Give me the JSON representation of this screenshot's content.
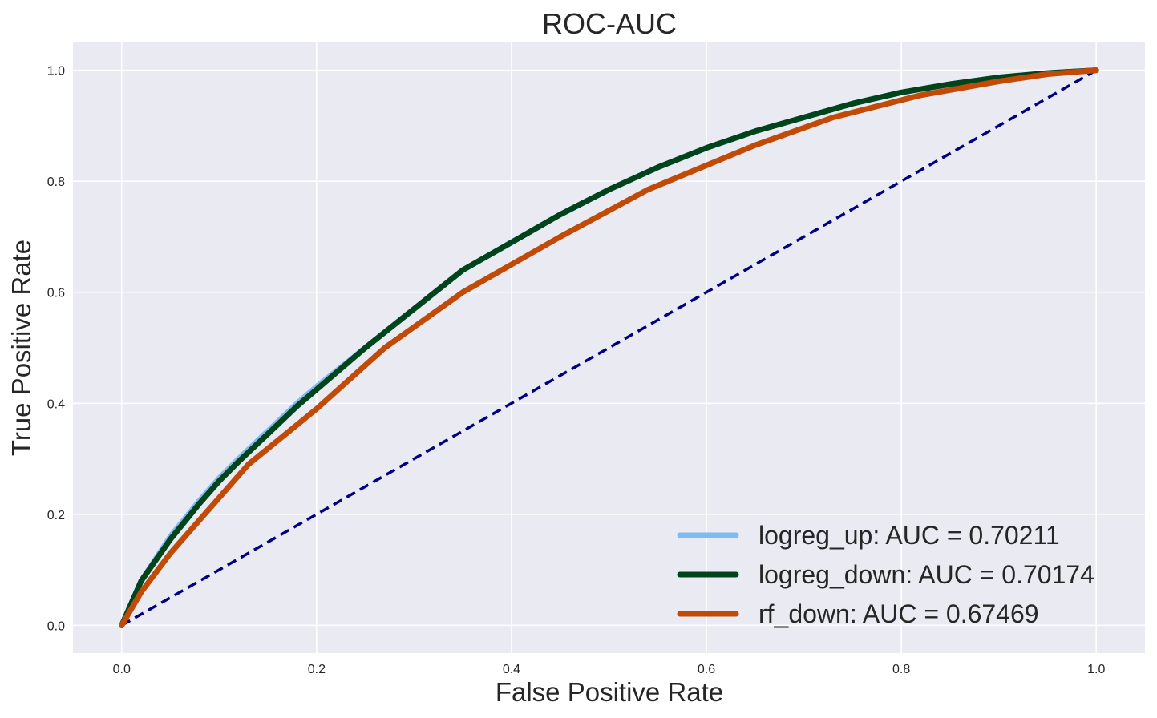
{
  "chart_data": {
    "type": "line",
    "title": "ROC-AUC",
    "xlabel": "False Positive Rate",
    "ylabel": "True Positive Rate",
    "xlim": [
      -0.05,
      1.05
    ],
    "ylim": [
      -0.05,
      1.05
    ],
    "xticks": [
      0.0,
      0.2,
      0.4,
      0.6,
      0.8,
      1.0
    ],
    "yticks": [
      0.0,
      0.2,
      0.4,
      0.6,
      0.8,
      1.0
    ],
    "x_tick_labels": [
      "0.0",
      "0.2",
      "0.4",
      "0.6",
      "0.8",
      "1.0"
    ],
    "y_tick_labels": [
      "0.0",
      "0.2",
      "0.4",
      "0.6",
      "0.8",
      "1.0"
    ],
    "grid": true,
    "legend_position": "lower-right",
    "background_color": "#eaeaf2",
    "series": [
      {
        "name": "logreg_up: AUC = 0.70211",
        "color": "#7fbbf2",
        "x": [
          0,
          0.02,
          0.05,
          0.08,
          0.1,
          0.12,
          0.15,
          0.18,
          0.2,
          0.25,
          0.3,
          0.35,
          0.4,
          0.45,
          0.5,
          0.55,
          0.6,
          0.65,
          0.7,
          0.75,
          0.8,
          0.85,
          0.9,
          0.95,
          1.0
        ],
        "y": [
          0,
          0.08,
          0.16,
          0.225,
          0.265,
          0.3,
          0.35,
          0.4,
          0.43,
          0.5,
          0.57,
          0.64,
          0.69,
          0.74,
          0.785,
          0.825,
          0.86,
          0.89,
          0.915,
          0.94,
          0.96,
          0.975,
          0.987,
          0.995,
          1.0
        ]
      },
      {
        "name": "logreg_down: AUC = 0.70174",
        "color": "#00441b",
        "x": [
          0,
          0.02,
          0.05,
          0.08,
          0.1,
          0.12,
          0.15,
          0.18,
          0.2,
          0.25,
          0.3,
          0.35,
          0.4,
          0.45,
          0.5,
          0.55,
          0.6,
          0.65,
          0.7,
          0.75,
          0.8,
          0.85,
          0.9,
          0.95,
          1.0
        ],
        "y": [
          0,
          0.08,
          0.155,
          0.22,
          0.26,
          0.295,
          0.345,
          0.395,
          0.425,
          0.5,
          0.57,
          0.64,
          0.69,
          0.74,
          0.785,
          0.825,
          0.86,
          0.89,
          0.915,
          0.94,
          0.96,
          0.975,
          0.987,
          0.995,
          1.0
        ]
      },
      {
        "name": "rf_down: AUC = 0.67469",
        "color": "#c24a07",
        "x": [
          0,
          0.02,
          0.05,
          0.09,
          0.13,
          0.2,
          0.27,
          0.35,
          0.45,
          0.54,
          0.65,
          0.73,
          0.82,
          0.9,
          0.95,
          1.0
        ],
        "y": [
          0,
          0.06,
          0.13,
          0.21,
          0.29,
          0.39,
          0.5,
          0.6,
          0.7,
          0.785,
          0.865,
          0.915,
          0.955,
          0.98,
          0.993,
          1.0
        ]
      }
    ],
    "reference_line": {
      "x": [
        0,
        1
      ],
      "y": [
        0,
        1
      ],
      "color": "#000080",
      "dash": true
    }
  }
}
